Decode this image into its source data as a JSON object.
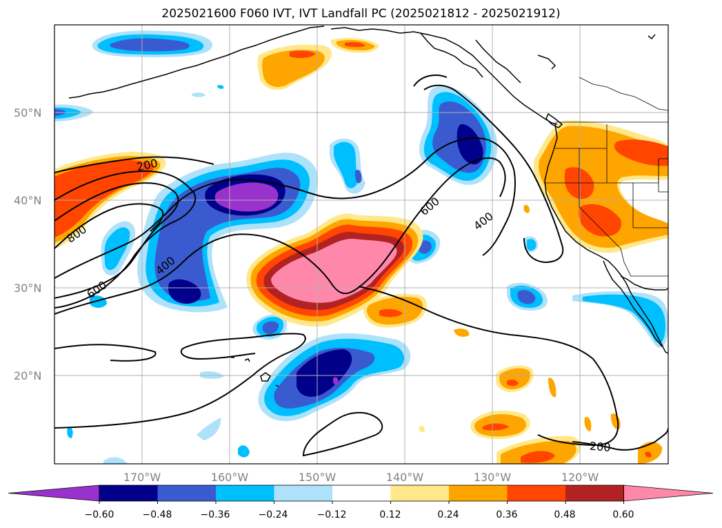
{
  "title": "2025021600 F060 IVT, IVT Landfall PC (2025021812 - 2025021912)",
  "lat_labels": [
    "50°N",
    "40°N",
    "30°N",
    "20°N"
  ],
  "lon_labels": [
    "170°W",
    "160°W",
    "150°W",
    "140°W",
    "130°W",
    "120°W"
  ],
  "contour_labels": [
    "200",
    "800",
    "600",
    "400",
    "600",
    "400",
    "200"
  ],
  "colorbar": {
    "ticks": [
      "−0.60",
      "−0.48",
      "−0.36",
      "−0.24",
      "−0.12",
      "0.12",
      "0.24",
      "0.36",
      "0.48",
      "0.60"
    ],
    "colors": [
      "#9932cc",
      "#00008b",
      "#3a5bd0",
      "#00bfff",
      "#aee2fb",
      "#ffffff",
      "#ffe88a",
      "#ffa500",
      "#ff4500",
      "#b22222",
      "#ff88aa"
    ]
  }
}
